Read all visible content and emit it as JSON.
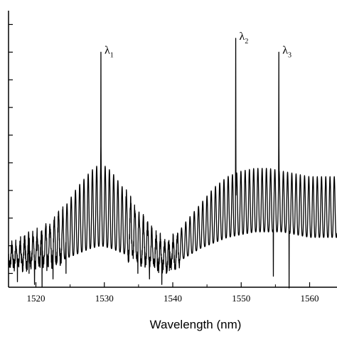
{
  "chart_data": {
    "type": "line",
    "title": "",
    "xlabel": "Wavelength (nm)",
    "ylabel": "",
    "xlim": [
      1516,
      1564
    ],
    "ylim": [
      0,
      1
    ],
    "grid": false,
    "legend": "none",
    "x_ticks": [
      1520,
      1530,
      1540,
      1550,
      1560
    ],
    "x_tick_labels": [
      "1520",
      "1530",
      "1540",
      "1550",
      "1560"
    ],
    "y_ticks": [
      0.05,
      0.15,
      0.25,
      0.35,
      0.45,
      0.55,
      0.65,
      0.75,
      0.85,
      0.95
    ],
    "series": [
      {
        "name": "",
        "color": "#000000",
        "ripple_period_nm": 0.62,
        "envelope": [
          {
            "x": 1516,
            "min": 0.08,
            "max": 0.14
          },
          {
            "x": 1519,
            "min": 0.08,
            "max": 0.18
          },
          {
            "x": 1522,
            "min": 0.09,
            "max": 0.22
          },
          {
            "x": 1524,
            "min": 0.1,
            "max": 0.28
          },
          {
            "x": 1526,
            "min": 0.12,
            "max": 0.36
          },
          {
            "x": 1528,
            "min": 0.14,
            "max": 0.42
          },
          {
            "x": 1529.5,
            "min": 0.15,
            "max": 0.45
          },
          {
            "x": 1531,
            "min": 0.14,
            "max": 0.42
          },
          {
            "x": 1533,
            "min": 0.12,
            "max": 0.35
          },
          {
            "x": 1535,
            "min": 0.1,
            "max": 0.27
          },
          {
            "x": 1537,
            "min": 0.08,
            "max": 0.21
          },
          {
            "x": 1538.5,
            "min": 0.07,
            "max": 0.16
          },
          {
            "x": 1540,
            "min": 0.08,
            "max": 0.17
          },
          {
            "x": 1542,
            "min": 0.11,
            "max": 0.24
          },
          {
            "x": 1544,
            "min": 0.14,
            "max": 0.3
          },
          {
            "x": 1546,
            "min": 0.16,
            "max": 0.36
          },
          {
            "x": 1548,
            "min": 0.18,
            "max": 0.4
          },
          {
            "x": 1550,
            "min": 0.19,
            "max": 0.42
          },
          {
            "x": 1552,
            "min": 0.2,
            "max": 0.43
          },
          {
            "x": 1554,
            "min": 0.2,
            "max": 0.43
          },
          {
            "x": 1556,
            "min": 0.2,
            "max": 0.42
          },
          {
            "x": 1558,
            "min": 0.19,
            "max": 0.41
          },
          {
            "x": 1560,
            "min": 0.18,
            "max": 0.4
          },
          {
            "x": 1562,
            "min": 0.18,
            "max": 0.4
          },
          {
            "x": 1564,
            "min": 0.18,
            "max": 0.4
          }
        ],
        "dips": [
          {
            "x": 1517.3,
            "y": 0.02
          },
          {
            "x": 1519.0,
            "y": 0.05
          },
          {
            "x": 1519.8,
            "y": 0.01
          },
          {
            "x": 1520.9,
            "y": 0.0
          },
          {
            "x": 1521.6,
            "y": 0.06
          },
          {
            "x": 1522.5,
            "y": 0.03
          },
          {
            "x": 1524.4,
            "y": 0.05
          },
          {
            "x": 1534.9,
            "y": 0.05
          },
          {
            "x": 1536.6,
            "y": 0.03
          },
          {
            "x": 1538.4,
            "y": 0.01
          },
          {
            "x": 1539.5,
            "y": 0.06
          },
          {
            "x": 1554.7,
            "y": 0.04
          },
          {
            "x": 1557.0,
            "y": -0.02
          }
        ],
        "peaks": [
          {
            "label": "λ",
            "sub": "1",
            "x": 1529.5,
            "y": 0.85
          },
          {
            "label": "λ",
            "sub": "2",
            "x": 1549.2,
            "y": 0.9
          },
          {
            "label": "λ",
            "sub": "3",
            "x": 1555.5,
            "y": 0.85
          }
        ]
      }
    ]
  }
}
